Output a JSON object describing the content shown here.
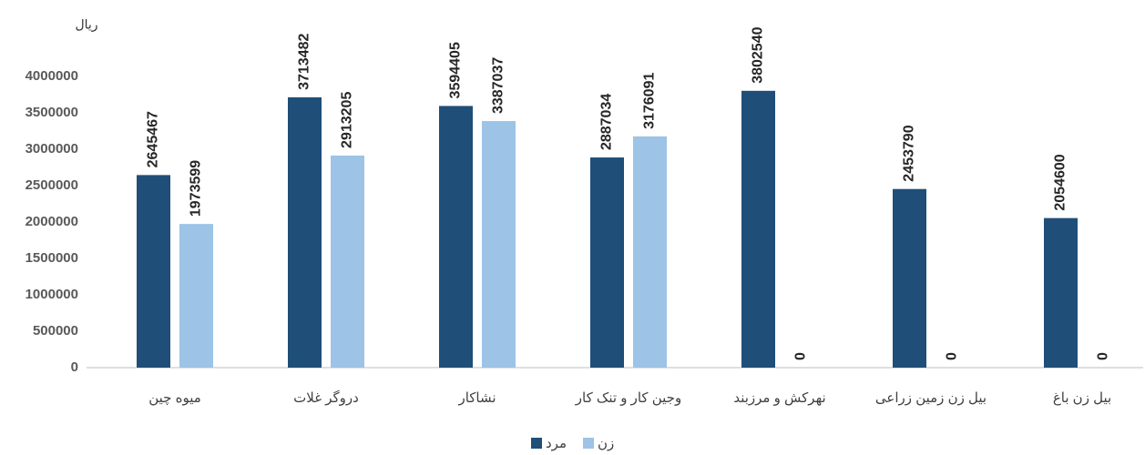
{
  "chart_data": {
    "type": "bar",
    "y_label": "ریال",
    "categories": [
      "میوه چین",
      "دروگر غلات",
      "نشاکار",
      "وجین کار و تنک کار",
      "نهرکش و مرزبند",
      "بیل زن زمین زراعی",
      "بیل زن باغ"
    ],
    "series": [
      {
        "name": "مرد",
        "color": "#1f4e79",
        "values": [
          2645467,
          3713482,
          3594405,
          2887034,
          3802540,
          2453790,
          2054600
        ]
      },
      {
        "name": "زن",
        "color": "#9dc3e6",
        "values": [
          1973599,
          2913205,
          3387037,
          3176091,
          0,
          0,
          0
        ]
      }
    ],
    "ylim": [
      0,
      4000000
    ],
    "yticks": [
      0,
      500000,
      1000000,
      1500000,
      2000000,
      2500000,
      3000000,
      3500000,
      4000000
    ],
    "grid": false
  }
}
